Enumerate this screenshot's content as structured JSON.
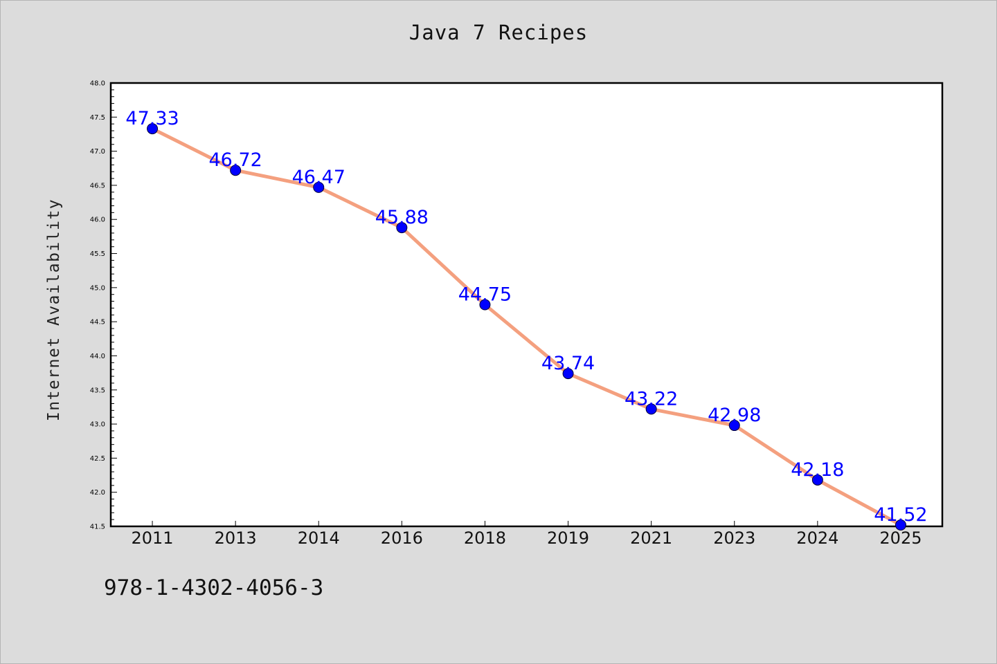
{
  "chart_data": {
    "type": "line",
    "title": "Java 7 Recipes",
    "ylabel": "Internet Availability",
    "xlabel": "",
    "categories": [
      "2011",
      "2013",
      "2014",
      "2016",
      "2018",
      "2019",
      "2021",
      "2023",
      "2024",
      "2025"
    ],
    "series": [
      {
        "values": [
          47.33,
          46.72,
          46.47,
          45.88,
          44.75,
          43.74,
          43.22,
          42.98,
          42.18,
          41.52
        ],
        "data_labels": [
          "47.33",
          "46.72",
          "46.47",
          "45.88",
          "44.75",
          "43.74",
          "43.22",
          "42.98",
          "42.18",
          "41.52"
        ]
      }
    ],
    "ylim": [
      41.5,
      48.0
    ],
    "yticks": [
      "41.5",
      "42.0",
      "42.5",
      "43.0",
      "43.5",
      "44.0",
      "44.5",
      "45.0",
      "45.5",
      "46.0",
      "46.5",
      "47.0",
      "47.5",
      "48.0"
    ],
    "grid": false,
    "colors": {
      "line": "#f4a07f",
      "marker": "#0000ff",
      "label": "#0000ff"
    }
  },
  "footer": {
    "text": "978-1-4302-4056-3"
  }
}
